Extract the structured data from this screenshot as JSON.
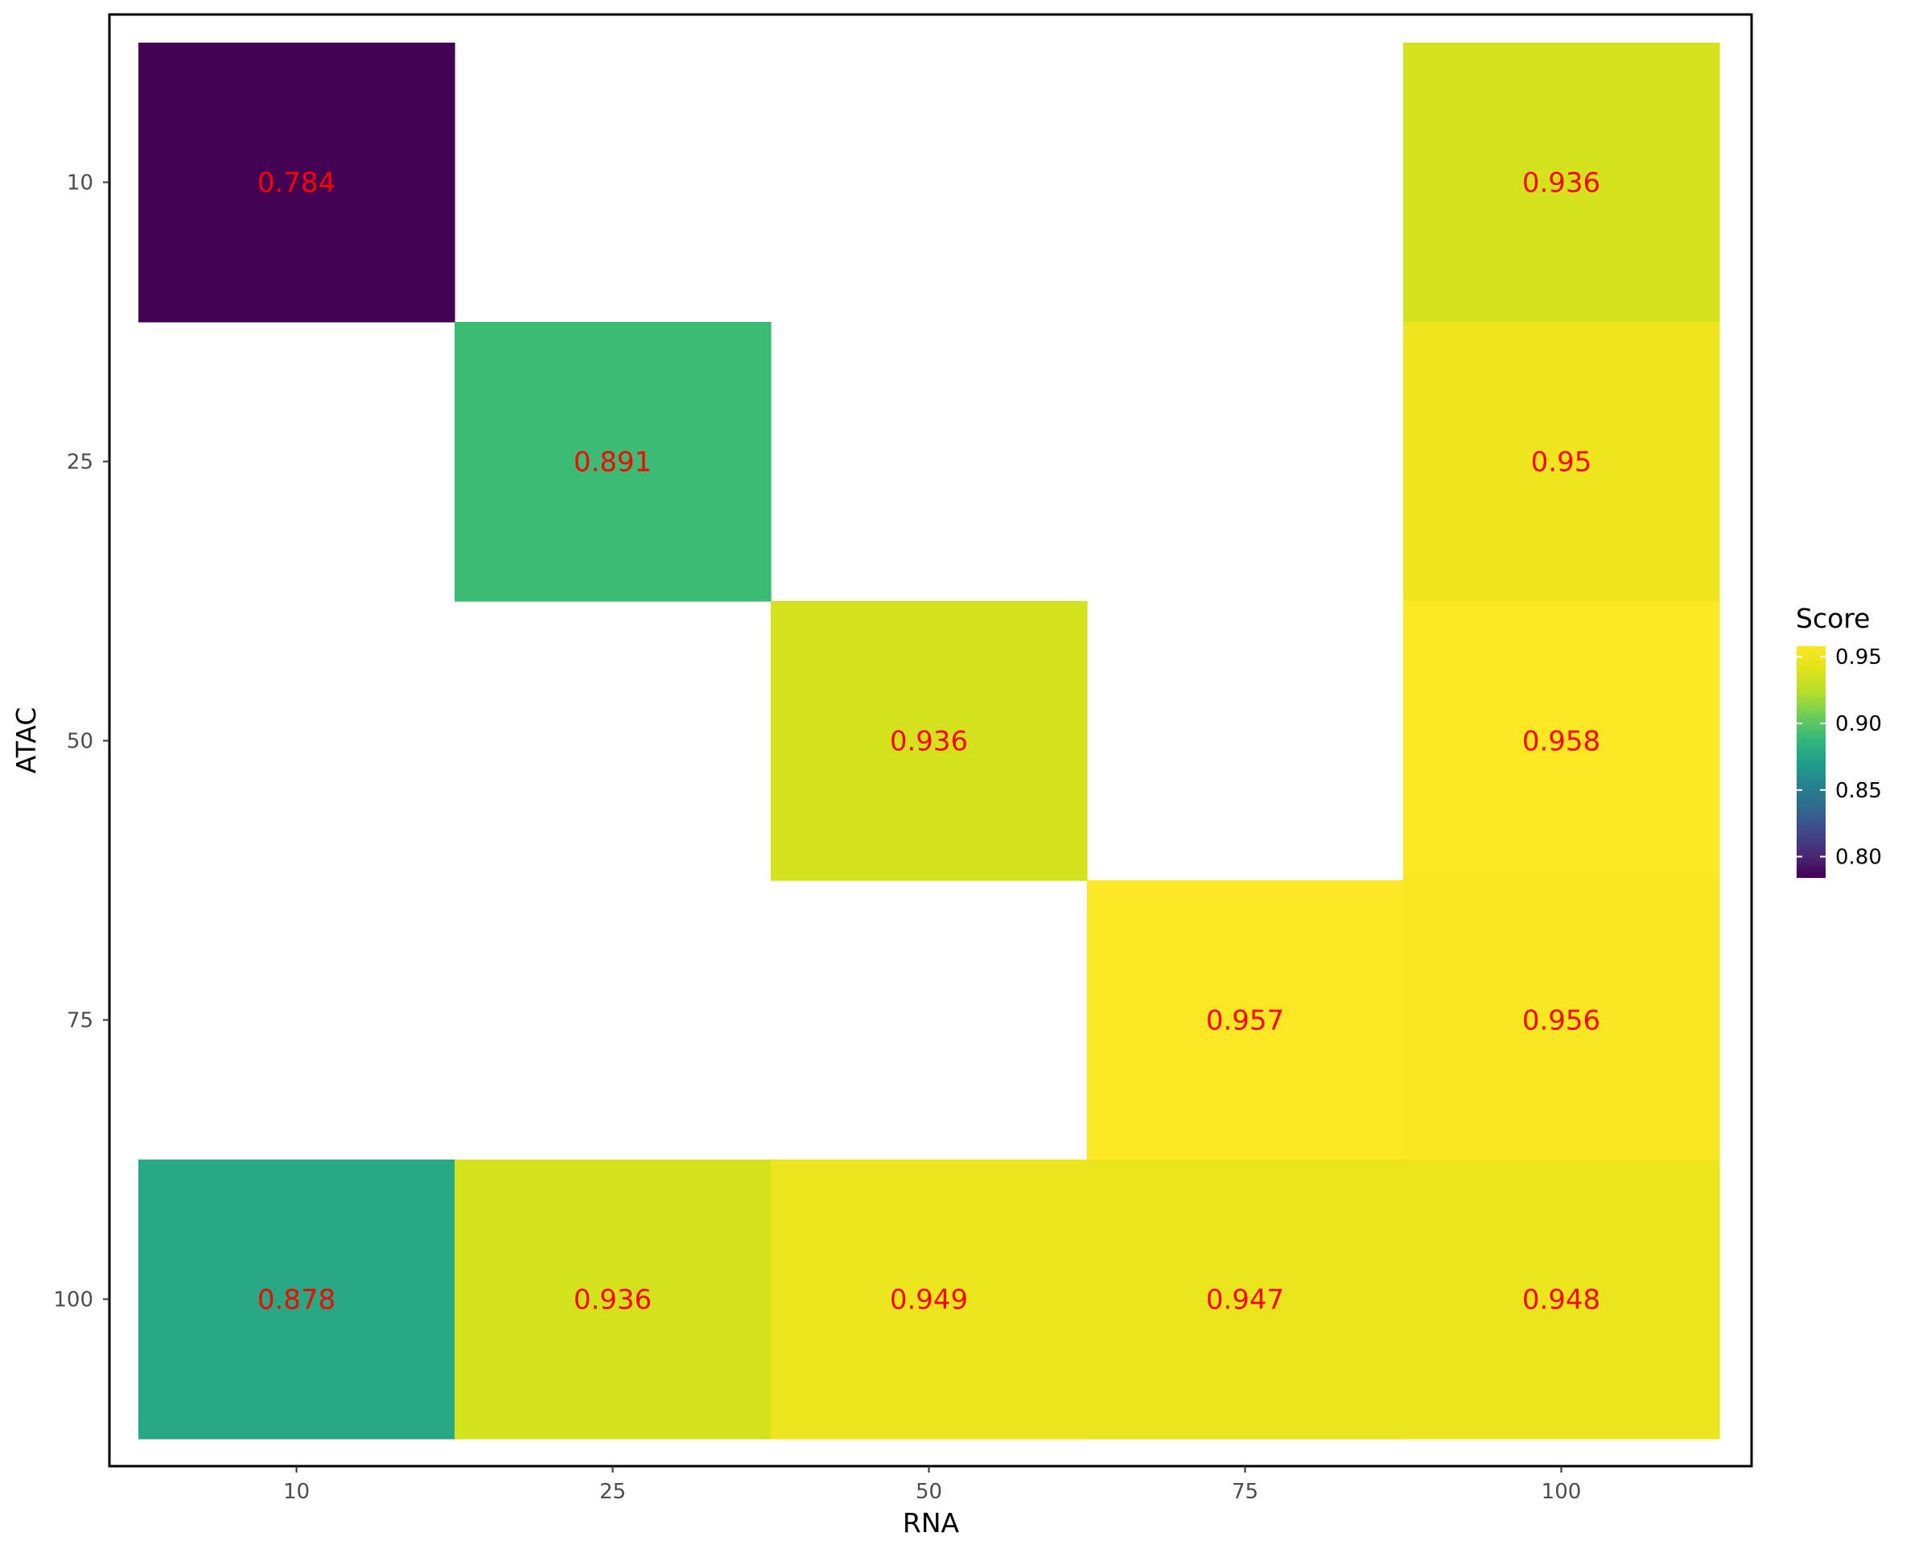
{
  "chart_data": {
    "type": "heatmap",
    "title": "",
    "xlabel": "RNA",
    "ylabel": "ATAC",
    "x_categories": [
      "10",
      "25",
      "50",
      "75",
      "100"
    ],
    "y_categories": [
      "10",
      "25",
      "50",
      "75",
      "100"
    ],
    "cells": [
      {
        "x": "10",
        "y": "10",
        "value": 0.784,
        "label": "0.784"
      },
      {
        "x": "100",
        "y": "10",
        "value": 0.936,
        "label": "0.936"
      },
      {
        "x": "25",
        "y": "25",
        "value": 0.891,
        "label": "0.891"
      },
      {
        "x": "100",
        "y": "25",
        "value": 0.95,
        "label": "0.95"
      },
      {
        "x": "50",
        "y": "50",
        "value": 0.936,
        "label": "0.936"
      },
      {
        "x": "100",
        "y": "50",
        "value": 0.958,
        "label": "0.958"
      },
      {
        "x": "75",
        "y": "75",
        "value": 0.957,
        "label": "0.957"
      },
      {
        "x": "100",
        "y": "75",
        "value": 0.956,
        "label": "0.956"
      },
      {
        "x": "10",
        "y": "100",
        "value": 0.878,
        "label": "0.878"
      },
      {
        "x": "25",
        "y": "100",
        "value": 0.936,
        "label": "0.936"
      },
      {
        "x": "50",
        "y": "100",
        "value": 0.949,
        "label": "0.949"
      },
      {
        "x": "75",
        "y": "100",
        "value": 0.947,
        "label": "0.947"
      },
      {
        "x": "100",
        "y": "100",
        "value": 0.948,
        "label": "0.948"
      }
    ],
    "color_scale": "viridis",
    "value_range": [
      0.784,
      0.958
    ],
    "label_color": "#ff0000",
    "grid": false,
    "legend": {
      "title": "Score",
      "placement": "right",
      "ticks": [
        0.8,
        0.85,
        0.9,
        0.95
      ],
      "tick_labels": [
        "0.80",
        "0.85",
        "0.90",
        "0.95"
      ]
    }
  }
}
